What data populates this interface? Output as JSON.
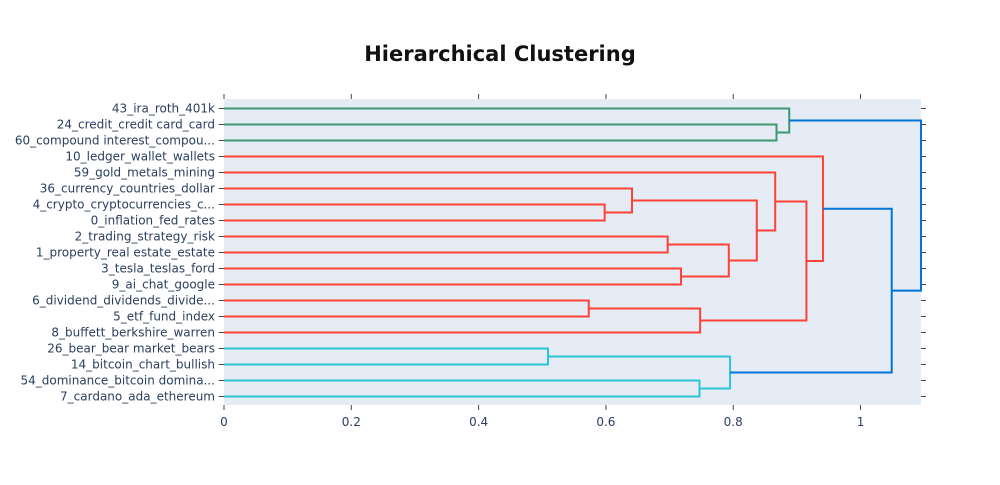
{
  "chart_data": {
    "type": "dendrogram",
    "title": "Hierarchical Clustering",
    "xlabel": "",
    "ylabel": "",
    "xlim": [
      0,
      1.095
    ],
    "x_ticks": [
      0,
      0.2,
      0.4,
      0.6,
      0.8,
      1
    ],
    "x_tick_labels": [
      "0",
      "0.2",
      "0.4",
      "0.6",
      "0.8",
      "1"
    ],
    "grid": false,
    "leaves": [
      "43_ira_roth_401k",
      "24_credit_credit card_card",
      "60_compound interest_compou...",
      "10_ledger_wallet_wallets",
      "59_gold_metals_mining",
      "36_currency_countries_dollar",
      "4_crypto_cryptocurrencies_c...",
      "0_inflation_fed_rates",
      "2_trading_strategy_risk",
      "1_property_real estate_estate",
      "3_tesla_teslas_ford",
      "9_ai_chat_google",
      "6_dividend_dividends_divide...",
      "5_etf_fund_index",
      "8_buffett_berkshire_warren",
      "26_bear_bear market_bears",
      "14_bitcoin_chart_bullish",
      "54_dominance_bitcoin domina...",
      "7_cardano_ada_ethereum"
    ],
    "colors": {
      "green": "#3d9970",
      "red": "#ff4136",
      "cyan": "#2ec4d6",
      "blue": "#0074d9",
      "plot_bg": "#e5ecf6",
      "axis_text": "#2a3f5f"
    },
    "merges": [
      {
        "id": "C1",
        "left": 1,
        "right": 2,
        "height": 0.868,
        "color": "green"
      },
      {
        "id": "C2",
        "left": 0,
        "right": "C1",
        "height": 0.888,
        "color": "green"
      },
      {
        "id": "C3",
        "left": 6,
        "right": 7,
        "height": 0.598,
        "color": "red"
      },
      {
        "id": "C4",
        "left": 5,
        "right": "C3",
        "height": 0.641,
        "color": "red"
      },
      {
        "id": "C5",
        "left": 8,
        "right": 9,
        "height": 0.697,
        "color": "red"
      },
      {
        "id": "C6",
        "left": 10,
        "right": 11,
        "height": 0.718,
        "color": "red"
      },
      {
        "id": "C7",
        "left": "C5",
        "right": "C6",
        "height": 0.793,
        "color": "red"
      },
      {
        "id": "C8",
        "left": "C4",
        "right": "C7",
        "height": 0.837,
        "color": "red"
      },
      {
        "id": "C9",
        "left": 4,
        "right": "C8",
        "height": 0.866,
        "color": "red"
      },
      {
        "id": "C10",
        "left": 12,
        "right": 13,
        "height": 0.573,
        "color": "red"
      },
      {
        "id": "C11",
        "left": "C10",
        "right": 14,
        "height": 0.748,
        "color": "red"
      },
      {
        "id": "C12",
        "left": "C9",
        "right": "C11",
        "height": 0.915,
        "color": "red"
      },
      {
        "id": "C13",
        "left": 3,
        "right": "C12",
        "height": 0.941,
        "color": "red"
      },
      {
        "id": "C14",
        "left": 15,
        "right": 16,
        "height": 0.509,
        "color": "cyan"
      },
      {
        "id": "C15",
        "left": 17,
        "right": 18,
        "height": 0.747,
        "color": "cyan"
      },
      {
        "id": "C16",
        "left": "C14",
        "right": "C15",
        "height": 0.795,
        "color": "cyan"
      },
      {
        "id": "C17",
        "left": "C13",
        "right": "C16",
        "height": 1.049,
        "color": "blue"
      },
      {
        "id": "C18",
        "left": "C2",
        "right": "C17",
        "height": 1.095,
        "color": "blue"
      }
    ]
  }
}
